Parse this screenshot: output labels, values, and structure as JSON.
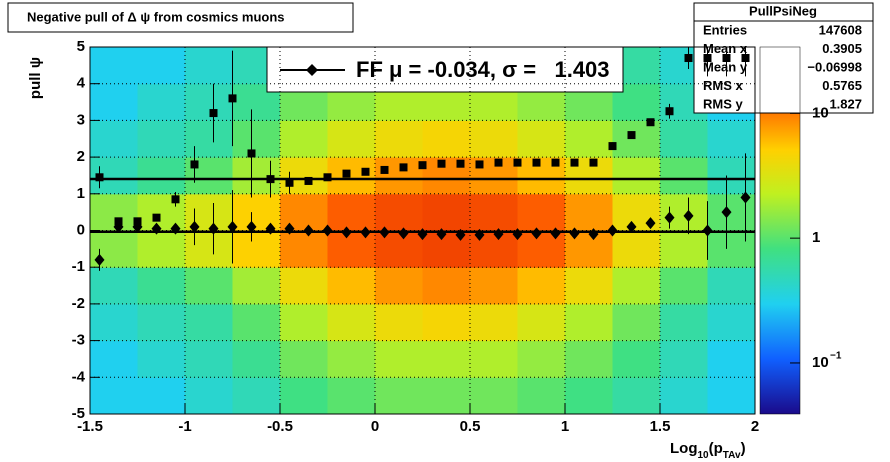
{
  "chart_data": {
    "type": "heatmap",
    "title": "Negative pull of Δ ψ from cosmics muons",
    "y_label": "pull ψ",
    "x_label": [
      "Log",
      "10",
      "(p",
      "TAv",
      ")"
    ],
    "xlim": [
      -1.5,
      2
    ],
    "ylim": [
      -5,
      5
    ],
    "xticks": [
      -1.5,
      -1,
      -0.5,
      0,
      0.5,
      1,
      1.5,
      2
    ],
    "yticks": [
      -5,
      -4,
      -3,
      -2,
      -1,
      0,
      1,
      2,
      3,
      4,
      5
    ],
    "grid": true,
    "zlim": [
      0.039,
      34
    ],
    "zlog": true,
    "zticks": [
      {
        "value": 0.1,
        "label": "10",
        "exponent": "−1"
      },
      1,
      10
    ],
    "heatmap": {
      "xbins": [
        -1.5,
        -1.25,
        -1,
        -0.75,
        -0.5,
        -0.25,
        0,
        0.25,
        0.5,
        0.75,
        1,
        1.25,
        1.5,
        1.75,
        2
      ],
      "ybins": [
        -5,
        -4,
        -3,
        -2,
        -1,
        0,
        1,
        2,
        3,
        4,
        5
      ],
      "values": [
        [
          0.3,
          0.3,
          0.4,
          0.5,
          0.8,
          1,
          1.2,
          1.2,
          1.2,
          1,
          0.8,
          0.6,
          0.4,
          0.3
        ],
        [
          0.3,
          0.4,
          0.5,
          0.7,
          1.2,
          1.6,
          2,
          2,
          2,
          1.6,
          1.2,
          0.8,
          0.5,
          0.3
        ],
        [
          0.4,
          0.5,
          0.6,
          1,
          2,
          3,
          4,
          4.5,
          4,
          3,
          2,
          1.2,
          0.6,
          0.4
        ],
        [
          0.5,
          0.7,
          1,
          1.8,
          4,
          6,
          8,
          9,
          8,
          6,
          4,
          2,
          1,
          0.5
        ],
        [
          1.5,
          2,
          3,
          5,
          9,
          13,
          17,
          19,
          17,
          13,
          8,
          4,
          2,
          1
        ],
        [
          1.5,
          2,
          3,
          5,
          9,
          13,
          17,
          19,
          17,
          13,
          8,
          4,
          2,
          1
        ],
        [
          0.5,
          0.7,
          1,
          1.8,
          4,
          6,
          8,
          9,
          8,
          6,
          4,
          2,
          1,
          0.5
        ],
        [
          0.4,
          0.5,
          0.6,
          1,
          2,
          3,
          4,
          4.5,
          4,
          3,
          2,
          1.2,
          0.6,
          0.4
        ],
        [
          0.3,
          0.4,
          0.5,
          0.7,
          1.2,
          1.6,
          2,
          2,
          2,
          1.6,
          1.2,
          0.8,
          0.5,
          0.3
        ],
        [
          0.3,
          0.3,
          0.4,
          0.5,
          0.8,
          1,
          1.2,
          1.2,
          1.2,
          1,
          0.8,
          0.6,
          0.4,
          0.3
        ]
      ]
    },
    "x": [
      -1.45,
      -1.35,
      -1.25,
      -1.15,
      -1.05,
      -0.95,
      -0.85,
      -0.75,
      -0.65,
      -0.55,
      -0.45,
      -0.35,
      -0.25,
      -0.15,
      -0.05,
      0.05,
      0.15,
      0.25,
      0.35,
      0.45,
      0.55,
      0.65,
      0.75,
      0.85,
      0.95,
      1.05,
      1.15,
      1.25,
      1.35,
      1.45,
      1.55,
      1.65,
      1.75,
      1.85,
      1.95
    ],
    "series": [
      {
        "marker": "square",
        "color": "#000000",
        "values": [
          1.45,
          0.25,
          0.25,
          0.35,
          0.85,
          1.8,
          3.2,
          3.6,
          2.1,
          1.4,
          1.3,
          1.35,
          1.45,
          1.55,
          1.6,
          1.65,
          1.72,
          1.78,
          1.82,
          1.82,
          1.8,
          1.85,
          1.85,
          1.85,
          1.85,
          1.85,
          1.85,
          2.3,
          2.6,
          2.95,
          3.25,
          4.7,
          4.7,
          4.7,
          4.7
        ],
        "errors": [
          0.3,
          0.1,
          0.1,
          0.1,
          0.2,
          0.5,
          0.8,
          1.3,
          1.2,
          0.5,
          0.3,
          0.05,
          0.05,
          0.05,
          0.05,
          0.05,
          0.05,
          0.05,
          0.05,
          0.05,
          0.05,
          0.05,
          0.05,
          0.05,
          0.05,
          0.05,
          0.05,
          0.1,
          0.1,
          0.1,
          0.2,
          0.3,
          0.5,
          0.5,
          0.5
        ]
      },
      {
        "marker": "diamond",
        "color": "#000000",
        "values": [
          -0.8,
          0.1,
          0.1,
          0.05,
          0.05,
          0.1,
          0.05,
          0.1,
          0.1,
          0.05,
          0.05,
          0.0,
          0.0,
          -0.05,
          -0.05,
          -0.05,
          -0.08,
          -0.1,
          -0.1,
          -0.12,
          -0.12,
          -0.1,
          -0.1,
          -0.08,
          -0.08,
          -0.08,
          -0.1,
          0.0,
          0.1,
          0.2,
          0.35,
          0.4,
          0.0,
          0.5,
          0.9
        ],
        "errors": [
          0.3,
          0.1,
          0.1,
          0.1,
          0.1,
          0.5,
          0.7,
          1.0,
          0.4,
          0.1,
          0.05,
          0.05,
          0.05,
          0.05,
          0.05,
          0.05,
          0.05,
          0.05,
          0.05,
          0.05,
          0.05,
          0.05,
          0.05,
          0.05,
          0.05,
          0.05,
          0.05,
          0.05,
          0.1,
          0.1,
          0.3,
          0.5,
          0.8,
          1.0,
          1.2
        ]
      }
    ],
    "fit_lines": [
      1.403,
      -0.034
    ],
    "legend": {
      "label": "FF μ = -0.034, σ =   1.403"
    },
    "stats": {
      "title": "PullPsiNeg",
      "rows": [
        [
          "Entries",
          "147608"
        ],
        [
          "Mean x",
          "0.3905"
        ],
        [
          "Mean y",
          "−0.06998"
        ],
        [
          "RMS x",
          "0.5765"
        ],
        [
          "RMS y",
          "1.827"
        ]
      ]
    }
  }
}
